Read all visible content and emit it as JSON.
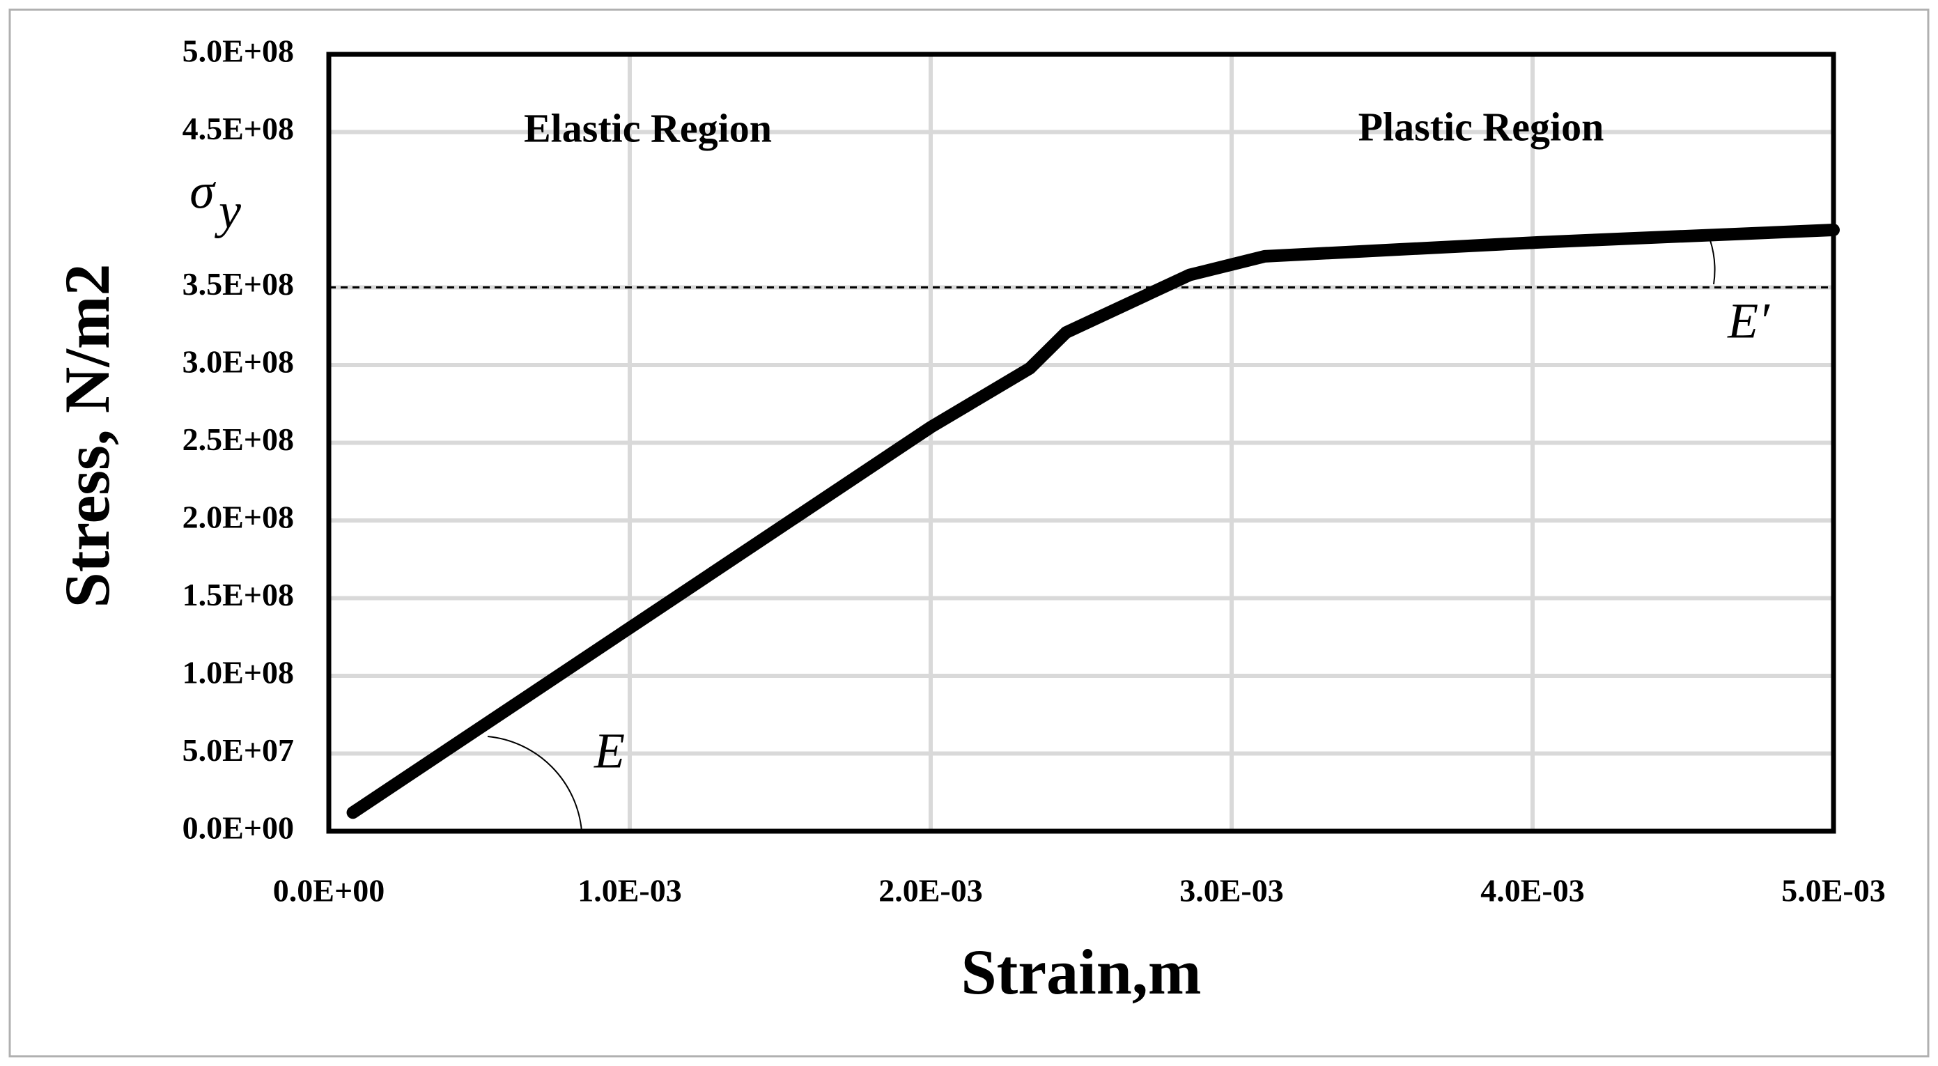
{
  "chart_data": {
    "type": "line",
    "xlabel": "Strain,m",
    "ylabel": "Stress, N/m2",
    "annotations": {
      "elastic": "Elastic Region",
      "plastic": "Plastic Region",
      "modulus": "E",
      "tangent_modulus": "E′",
      "yield_symbol": "σ",
      "yield_subscript": "y"
    },
    "yield_line": 350000000,
    "x": [
      8e-05,
      0.002,
      0.00233,
      0.00245,
      0.00286,
      0.00311,
      0.00402,
      0.005
    ],
    "series": [
      {
        "color": "#000000",
        "values": [
          12000000,
          260000000,
          298000000,
          321000000,
          358000000,
          370000000,
          379000000,
          387000000
        ]
      }
    ],
    "xlim": [
      0,
      0.005
    ],
    "ylim": [
      0,
      500000000
    ],
    "xticks": [
      {
        "value": 0,
        "label": "0.0E+00"
      },
      {
        "value": 0.001,
        "label": "1.0E-03"
      },
      {
        "value": 0.002,
        "label": "2.0E-03"
      },
      {
        "value": 0.003,
        "label": "3.0E-03"
      },
      {
        "value": 0.004,
        "label": "4.0E-03"
      },
      {
        "value": 0.005,
        "label": "5.0E-03"
      }
    ],
    "yticks": [
      {
        "value": 0,
        "label": "0.0E+00"
      },
      {
        "value": 50000000,
        "label": "5.0E+07"
      },
      {
        "value": 100000000,
        "label": "1.0E+08"
      },
      {
        "value": 150000000,
        "label": "1.5E+08"
      },
      {
        "value": 200000000,
        "label": "2.0E+08"
      },
      {
        "value": 250000000,
        "label": "2.5E+08"
      },
      {
        "value": 300000000,
        "label": "3.0E+08"
      },
      {
        "value": 350000000,
        "label": "3.5E+08"
      },
      {
        "value": 450000000,
        "label": "4.5E+08"
      },
      {
        "value": 500000000,
        "label": "5.0E+08"
      }
    ],
    "grid": true
  }
}
